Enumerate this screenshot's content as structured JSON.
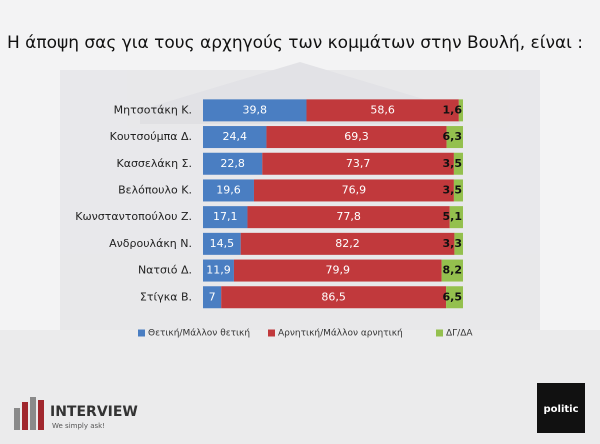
{
  "chart_data": {
    "type": "bar",
    "orientation": "horizontal",
    "stacked": true,
    "title": "Η άποψη σας για τους αρχηγούς των κομμάτων στην Βουλή,  είναι :",
    "categories": [
      "Μητσοτάκη Κ.",
      "Κουτσούμπα Δ.",
      "Κασσελάκη Σ.",
      "Βελόπουλο Κ.",
      "Κωνσταντοπούλου Ζ.",
      "Ανδρουλάκη Ν.",
      "Νατσιό Δ.",
      "Στίγκα Β."
    ],
    "xlim": [
      0,
      100
    ],
    "legend": "bottom",
    "series": [
      {
        "name": "Θετική/Μάλλον θετική",
        "color": "#4a7ec2",
        "values": [
          39.8,
          24.4,
          22.8,
          19.6,
          17.1,
          14.5,
          11.9,
          7
        ],
        "value_labels": [
          "39,8",
          "24,4",
          "22,8",
          "19,6",
          "17,1",
          "14,5",
          "11,9",
          "7"
        ]
      },
      {
        "name": "Αρνητική/Μάλλον αρνητική",
        "color": "#c1393c",
        "values": [
          58.6,
          69.3,
          73.7,
          76.9,
          77.8,
          82.2,
          79.9,
          86.5
        ],
        "value_labels": [
          "58,6",
          "69,3",
          "73,7",
          "76,9",
          "77,8",
          "82,2",
          "79,9",
          "86,5"
        ]
      },
      {
        "name": "ΔΓ/ΔΑ",
        "color": "#94c04e",
        "values": [
          1.6,
          6.3,
          3.5,
          3.5,
          5.1,
          3.3,
          8.2,
          6.5
        ],
        "value_labels": [
          "1,6",
          "6,3",
          "3,5",
          "3,5",
          "5,1",
          "3,3",
          "8,2",
          "6,5"
        ]
      }
    ]
  },
  "branding": {
    "left": "INTERVIEW",
    "left_tagline": "We simply ask!",
    "right": "politic"
  }
}
